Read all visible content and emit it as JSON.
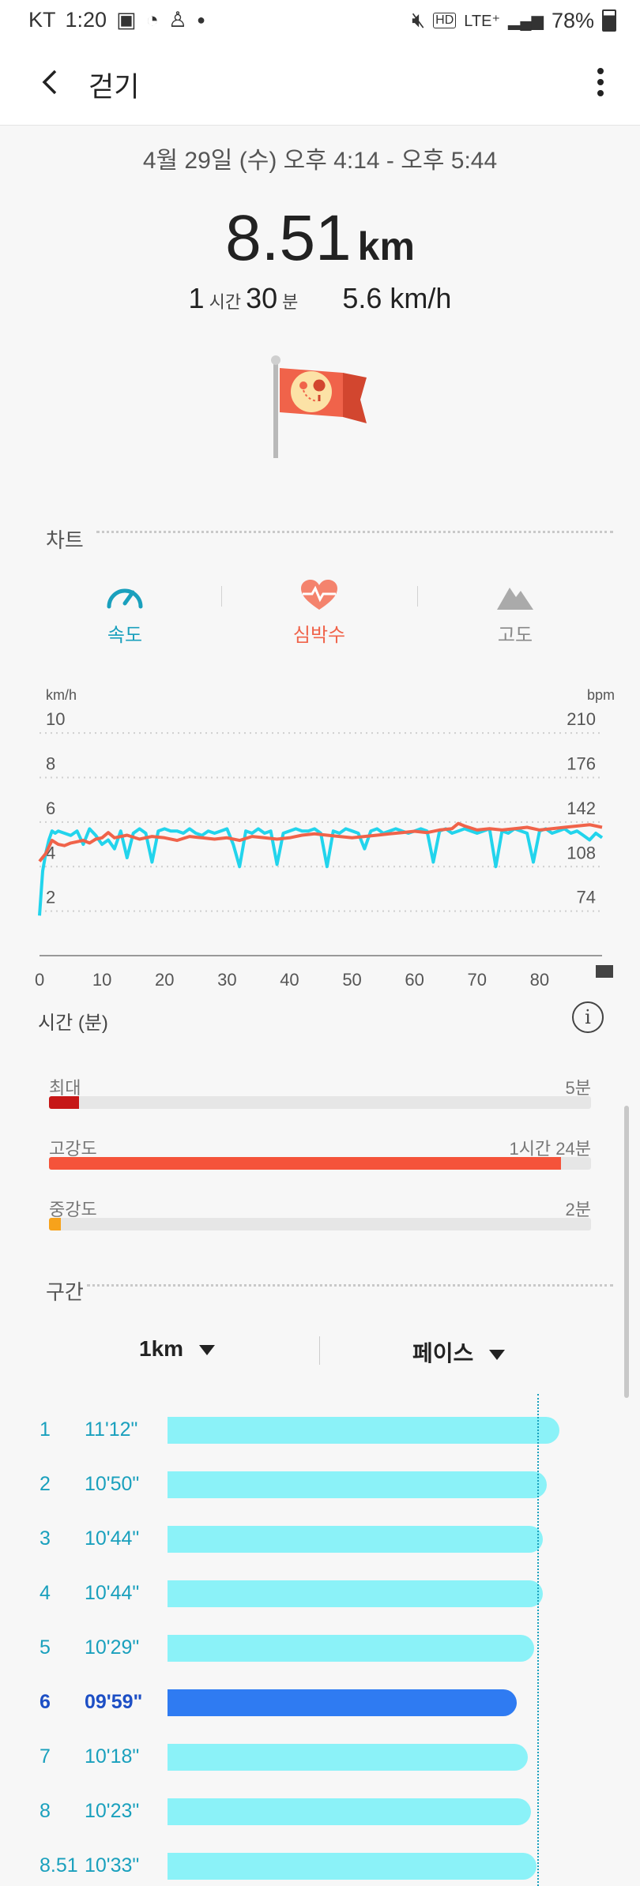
{
  "status_bar": {
    "carrier": "KT",
    "time": "1:20",
    "network": "LTE⁺",
    "battery": "78%"
  },
  "header": {
    "title": "걷기"
  },
  "summary": {
    "date_range": "4월 29일 (수) 오후 4:14 - 오후 5:44",
    "distance": "8.51",
    "distance_unit": "km",
    "hours": "1",
    "hours_unit": "시간",
    "minutes": "30",
    "minutes_unit": "분",
    "avg_speed": "5.6 km/h"
  },
  "chart_section": {
    "title": "차트",
    "tabs": [
      {
        "label": "속도",
        "icon": "speedometer-icon",
        "color": "#1aa0bd"
      },
      {
        "label": "심박수",
        "icon": "heart-rate-icon",
        "color": "#f0634a"
      },
      {
        "label": "고도",
        "icon": "mountain-icon",
        "color": "#888888"
      }
    ],
    "time_label": "시간 (분)"
  },
  "chart_data": {
    "type": "line",
    "xlabel": "시간 (분)",
    "ylabel_left": "km/h",
    "ylabel_right": "bpm",
    "x_ticks": [
      0,
      10,
      20,
      30,
      40,
      50,
      60,
      70,
      80
    ],
    "xlim": [
      0,
      90
    ],
    "y_left_ticks": [
      2,
      4,
      6,
      8,
      10
    ],
    "y_right_ticks": [
      74,
      108,
      142,
      176,
      210
    ],
    "ylim_left": [
      0,
      11
    ],
    "ylim_right": [
      40,
      227
    ],
    "grid": true,
    "series": [
      {
        "axis": "left",
        "color": "#22d4ec",
        "x": [
          0,
          0.5,
          1,
          1.5,
          2,
          2.5,
          3,
          4,
          5,
          6,
          7,
          8,
          9,
          10,
          11,
          12,
          13,
          14,
          15,
          16,
          17,
          18,
          19,
          20,
          21,
          22,
          23,
          24,
          25,
          26,
          27,
          28,
          29,
          30,
          31,
          32,
          33,
          34,
          35,
          36,
          37,
          38,
          39,
          40,
          41,
          42,
          43,
          44,
          45,
          46,
          47,
          48,
          49,
          50,
          51,
          52,
          53,
          54,
          55,
          56,
          57,
          58,
          59,
          60,
          61,
          62,
          63,
          64,
          65,
          66,
          67,
          68,
          69,
          70,
          71,
          72,
          73,
          74,
          75,
          76,
          77,
          78,
          79,
          80,
          81,
          82,
          83,
          84,
          85,
          86,
          87,
          88,
          89,
          90
        ],
        "values": [
          1.8,
          3.8,
          4.6,
          5.2,
          5.6,
          5.5,
          5.6,
          5.5,
          5.4,
          5.6,
          5.0,
          5.7,
          5.4,
          5.0,
          5.2,
          4.8,
          5.6,
          4.4,
          5.5,
          5.7,
          5.5,
          4.2,
          5.6,
          5.7,
          5.6,
          5.6,
          5.5,
          5.7,
          5.5,
          5.4,
          5.6,
          5.5,
          5.6,
          5.7,
          5.0,
          4.0,
          5.6,
          5.5,
          5.7,
          5.5,
          5.6,
          4.1,
          5.5,
          5.6,
          5.7,
          5.6,
          5.6,
          5.7,
          5.5,
          4.0,
          5.6,
          5.5,
          5.7,
          5.6,
          5.5,
          4.8,
          5.6,
          5.7,
          5.5,
          5.6,
          5.7,
          5.6,
          5.5,
          5.6,
          5.7,
          5.6,
          4.2,
          5.6,
          5.7,
          5.5,
          5.6,
          5.7,
          5.6,
          5.5,
          5.6,
          5.7,
          4.0,
          5.6,
          5.5,
          5.7,
          5.6,
          5.5,
          4.2,
          5.6,
          5.7,
          5.5,
          5.6,
          5.7,
          5.5,
          5.6,
          5.4,
          5.2,
          5.5,
          5.3
        ]
      },
      {
        "axis": "right",
        "color": "#f0634a",
        "x": [
          0,
          1,
          2,
          3,
          4,
          5,
          6,
          7,
          8,
          9,
          10,
          11,
          12,
          14,
          16,
          18,
          20,
          22,
          24,
          26,
          28,
          30,
          32,
          34,
          36,
          38,
          40,
          42,
          44,
          46,
          48,
          50,
          52,
          54,
          56,
          58,
          60,
          62,
          64,
          66,
          67,
          68,
          70,
          72,
          74,
          76,
          78,
          80,
          82,
          84,
          86,
          88,
          90
        ],
        "values": [
          112,
          118,
          128,
          125,
          124,
          126,
          127,
          128,
          126,
          129,
          130,
          134,
          130,
          132,
          129,
          131,
          130,
          128,
          131,
          130,
          129,
          130,
          128,
          131,
          130,
          129,
          130,
          132,
          133,
          132,
          131,
          130,
          131,
          132,
          133,
          134,
          135,
          134,
          136,
          137,
          141,
          139,
          136,
          137,
          136,
          137,
          138,
          136,
          137,
          138,
          139,
          140,
          138
        ]
      }
    ]
  },
  "hr_zones": [
    {
      "label": "최대",
      "value": "5분",
      "fraction": 0.055,
      "color": "#c61717"
    },
    {
      "label": "고강도",
      "value": "1시간 24분",
      "fraction": 0.945,
      "color": "#f5533a"
    },
    {
      "label": "중강도",
      "value": "2분",
      "fraction": 0.022,
      "color": "#f7a21b"
    }
  ],
  "segments_section": {
    "title": "구간",
    "unit_dropdown": "1km",
    "metric_dropdown": "페이스",
    "items": [
      {
        "n": "1",
        "pace": "11'12\"",
        "seconds": 672,
        "best": false
      },
      {
        "n": "2",
        "pace": "10'50\"",
        "seconds": 650,
        "best": false
      },
      {
        "n": "3",
        "pace": "10'44\"",
        "seconds": 644,
        "best": false
      },
      {
        "n": "4",
        "pace": "10'44\"",
        "seconds": 644,
        "best": false
      },
      {
        "n": "5",
        "pace": "10'29\"",
        "seconds": 629,
        "best": false
      },
      {
        "n": "6",
        "pace": "09'59\"",
        "seconds": 599,
        "best": true
      },
      {
        "n": "7",
        "pace": "10'18\"",
        "seconds": 618,
        "best": false
      },
      {
        "n": "8",
        "pace": "10'23\"",
        "seconds": 623,
        "best": false
      },
      {
        "n": "8.51",
        "pace": "10'33\"",
        "seconds": 633,
        "best": false
      }
    ]
  }
}
